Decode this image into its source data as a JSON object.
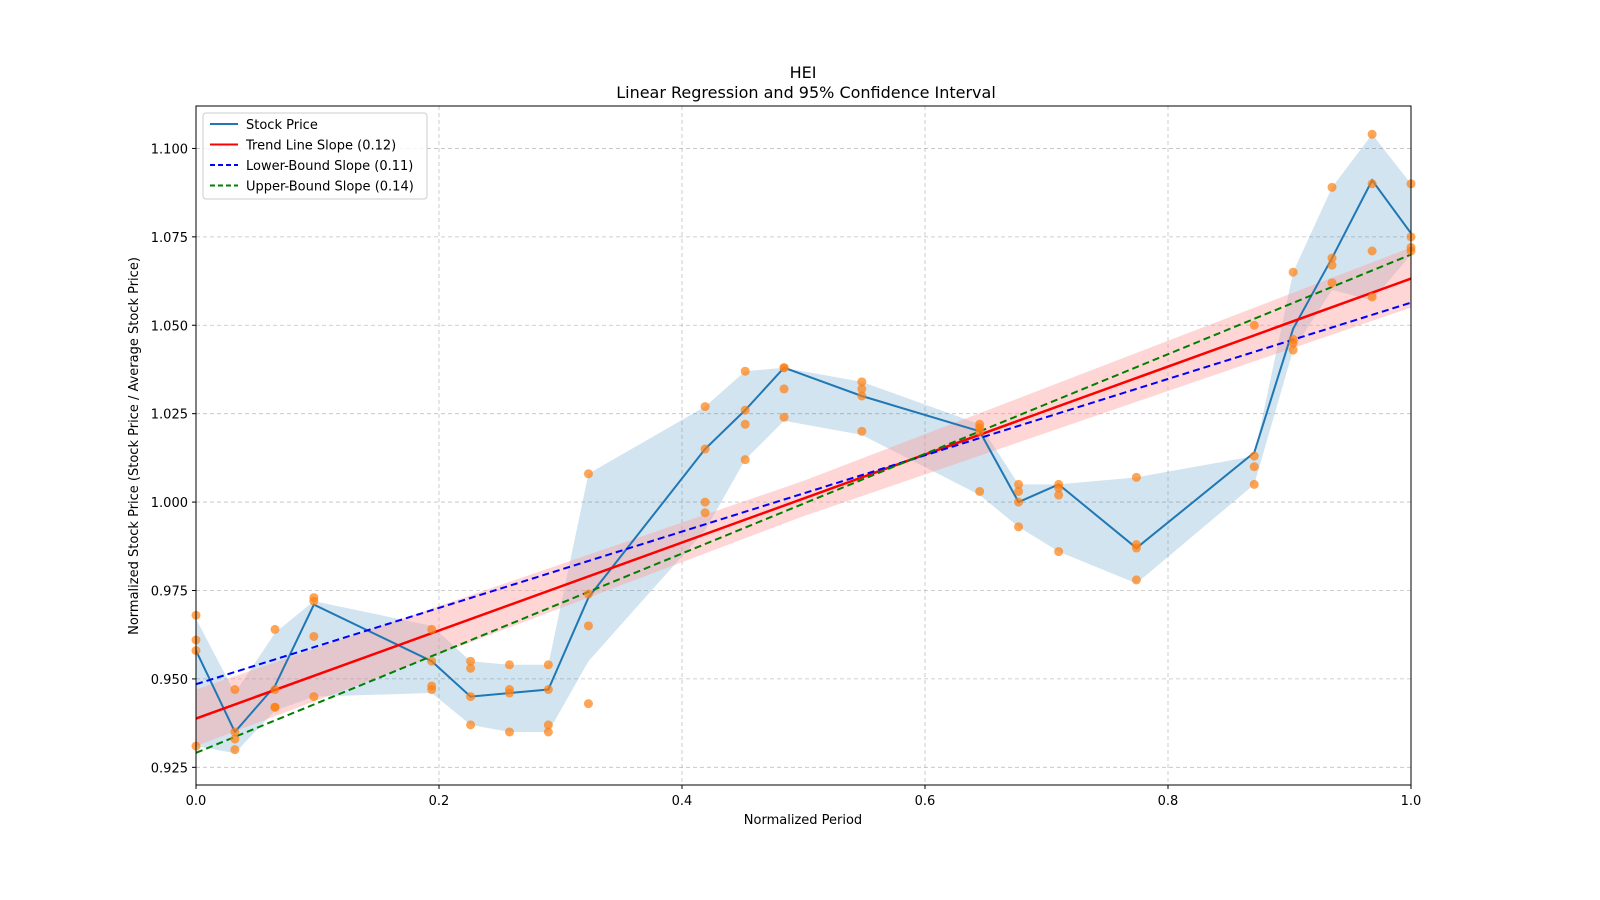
{
  "chart_data": {
    "type": "line",
    "title": "HEI",
    "subtitle": "Linear Regression and 95% Confidence Interval",
    "xlabel": "Normalized Period",
    "ylabel": "Normalized Stock Price (Stock Price / Average Stock Price)",
    "xlim": [
      0.0,
      1.0
    ],
    "ylim": [
      0.92,
      1.112
    ],
    "grid": true,
    "legend_position": "top-left",
    "x_ticks": [
      "0.0",
      "0.2",
      "0.4",
      "0.6",
      "0.8",
      "1.0"
    ],
    "x_tick_values": [
      0.0,
      0.2,
      0.4,
      0.6,
      0.8,
      1.0
    ],
    "y_ticks": [
      "0.925",
      "0.950",
      "0.975",
      "1.000",
      "1.025",
      "1.050",
      "1.075",
      "1.100"
    ],
    "y_tick_values": [
      0.925,
      0.95,
      0.975,
      1.0,
      1.025,
      1.05,
      1.075,
      1.1
    ],
    "colors": {
      "stock_line": "#1f77b4",
      "stock_band": "#1f77b4",
      "trend": "#ff0000",
      "trend_band": "#ff9999",
      "lower": "#0000ff",
      "upper": "#008000",
      "points": "#ff7f0e"
    },
    "legend": [
      {
        "label": "Stock Price",
        "style": "solid",
        "color": "#1f77b4"
      },
      {
        "label": "Trend Line Slope (0.12)",
        "style": "solid",
        "color": "#ff0000"
      },
      {
        "label": "Lower-Bound Slope (0.11)",
        "style": "dashed",
        "color": "#0000ff"
      },
      {
        "label": "Upper-Bound Slope (0.14)",
        "style": "dashed",
        "color": "#008000"
      }
    ],
    "stock_price": {
      "name": "Stock Price",
      "x": [
        0.0,
        0.032,
        0.065,
        0.097,
        0.194,
        0.226,
        0.258,
        0.29,
        0.323,
        0.419,
        0.452,
        0.484,
        0.548,
        0.645,
        0.677,
        0.71,
        0.774,
        0.871,
        0.903,
        0.935,
        0.968,
        1.0
      ],
      "y": [
        0.958,
        0.935,
        0.948,
        0.971,
        0.955,
        0.945,
        0.946,
        0.947,
        0.973,
        1.015,
        1.026,
        1.038,
        1.03,
        1.02,
        1.0,
        1.005,
        0.987,
        1.014,
        1.049,
        1.069,
        1.091,
        1.076
      ],
      "band_lower": [
        0.931,
        0.929,
        0.941,
        0.945,
        0.946,
        0.937,
        0.935,
        0.935,
        0.955,
        0.992,
        1.012,
        1.023,
        1.019,
        1.002,
        0.993,
        0.986,
        0.977,
        1.005,
        1.043,
        1.06,
        1.057,
        1.07
      ],
      "band_upper": [
        0.967,
        0.946,
        0.963,
        0.972,
        0.965,
        0.955,
        0.954,
        0.954,
        1.008,
        1.027,
        1.037,
        1.038,
        1.034,
        1.022,
        1.005,
        1.005,
        1.007,
        1.013,
        1.065,
        1.089,
        1.104,
        1.09
      ]
    },
    "scatter": {
      "name": "Observations",
      "x": [
        0.0,
        0.0,
        0.0,
        0.0,
        0.032,
        0.032,
        0.032,
        0.032,
        0.065,
        0.065,
        0.065,
        0.065,
        0.097,
        0.097,
        0.097,
        0.097,
        0.194,
        0.194,
        0.194,
        0.194,
        0.226,
        0.226,
        0.226,
        0.226,
        0.258,
        0.258,
        0.258,
        0.258,
        0.29,
        0.29,
        0.29,
        0.29,
        0.323,
        0.323,
        0.323,
        0.323,
        0.419,
        0.419,
        0.419,
        0.419,
        0.452,
        0.452,
        0.452,
        0.452,
        0.484,
        0.484,
        0.484,
        0.484,
        0.548,
        0.548,
        0.548,
        0.548,
        0.645,
        0.645,
        0.645,
        0.645,
        0.677,
        0.677,
        0.677,
        0.677,
        0.71,
        0.71,
        0.71,
        0.71,
        0.774,
        0.774,
        0.774,
        0.774,
        0.871,
        0.871,
        0.871,
        0.871,
        0.903,
        0.903,
        0.903,
        0.903,
        0.935,
        0.935,
        0.935,
        0.935,
        0.968,
        0.968,
        0.968,
        0.968,
        1.0,
        1.0,
        1.0,
        1.0
      ],
      "y": [
        0.968,
        0.961,
        0.958,
        0.931,
        0.947,
        0.935,
        0.933,
        0.93,
        0.964,
        0.947,
        0.942,
        0.942,
        0.973,
        0.972,
        0.962,
        0.945,
        0.964,
        0.955,
        0.948,
        0.947,
        0.955,
        0.953,
        0.945,
        0.937,
        0.954,
        0.947,
        0.946,
        0.935,
        0.954,
        0.947,
        0.937,
        0.935,
        1.008,
        0.974,
        0.965,
        0.943,
        1.027,
        1.015,
        1.0,
        0.997,
        1.037,
        1.026,
        1.022,
        1.012,
        1.038,
        1.038,
        1.032,
        1.024,
        1.034,
        1.032,
        1.03,
        1.02,
        1.022,
        1.021,
        1.02,
        1.003,
        1.005,
        1.003,
        1.0,
        0.993,
        1.005,
        1.004,
        1.002,
        0.986,
        1.007,
        0.988,
        0.987,
        0.978,
        1.05,
        1.013,
        1.01,
        1.005,
        1.065,
        1.046,
        1.045,
        1.043,
        1.089,
        1.069,
        1.067,
        1.062,
        1.104,
        1.09,
        1.071,
        1.058,
        1.09,
        1.075,
        1.072,
        1.071
      ]
    },
    "trend_line": {
      "name": "Trend Line Slope (0.12)",
      "slope": 0.12,
      "x": [
        0.0,
        1.0
      ],
      "y": [
        0.9388,
        1.0632
      ],
      "band_x": [
        0.0,
        0.5,
        1.0
      ],
      "band_lower": [
        0.931,
        0.996,
        1.055
      ],
      "band_upper": [
        0.947,
        1.006,
        1.072
      ]
    },
    "lower_bound": {
      "name": "Lower-Bound Slope (0.11)",
      "slope": 0.11,
      "x": [
        0.0,
        1.0
      ],
      "y": [
        0.9485,
        1.0564
      ]
    },
    "upper_bound": {
      "name": "Upper-Bound Slope (0.14)",
      "slope": 0.14,
      "x": [
        0.0,
        1.0
      ],
      "y": [
        0.9291,
        1.07
      ]
    }
  }
}
